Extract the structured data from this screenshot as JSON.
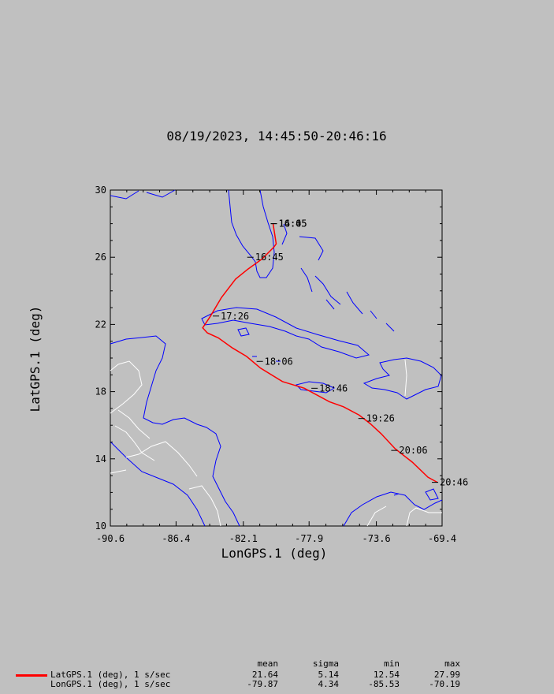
{
  "title": "08/19/2023, 14:45:50-20:46:16",
  "colors": {
    "background": "#c0c0c0",
    "plot_background": "#c0c0c0",
    "track": "#ff0000",
    "coastline": "#0000ff",
    "borders": "#ffffff",
    "axis": "#000000"
  },
  "chart_data": {
    "type": "line",
    "xlabel": "LonGPS.1 (deg)",
    "ylabel": "LatGPS.1 (deg)",
    "xlim": [
      -90.6,
      -69.4
    ],
    "ylim": [
      10,
      30
    ],
    "x_ticks": [
      "-90.6",
      "-86.4",
      "-82.1",
      "-77.9",
      "-73.6",
      "-69.4"
    ],
    "y_ticks": [
      "10",
      "14",
      "18",
      "22",
      "26",
      "30"
    ],
    "grid": false,
    "series": [
      {
        "name": "LatGPS.1 (deg), 1 s/sec",
        "color": "#ff0000",
        "points": [
          [
            -80.2,
            28.0
          ],
          [
            -80.0,
            26.8
          ],
          [
            -80.15,
            26.6
          ],
          [
            -80.9,
            25.9
          ],
          [
            -81.8,
            25.3
          ],
          [
            -82.6,
            24.7
          ],
          [
            -83.5,
            23.6
          ],
          [
            -84.2,
            22.5
          ],
          [
            -84.7,
            21.8
          ],
          [
            -84.4,
            21.5
          ],
          [
            -83.7,
            21.2
          ],
          [
            -82.8,
            20.6
          ],
          [
            -81.9,
            20.1
          ],
          [
            -81.0,
            19.4
          ],
          [
            -79.6,
            18.6
          ],
          [
            -78.2,
            18.2
          ],
          [
            -76.6,
            17.4
          ],
          [
            -75.7,
            17.1
          ],
          [
            -74.7,
            16.6
          ],
          [
            -74.0,
            16.1
          ],
          [
            -73.3,
            15.5
          ],
          [
            -72.4,
            14.6
          ],
          [
            -71.3,
            13.8
          ],
          [
            -70.3,
            12.9
          ],
          [
            -69.7,
            12.6
          ]
        ]
      }
    ],
    "time_labels": [
      {
        "label": "14:45",
        "lon": -80.1,
        "lat": 28.0
      },
      {
        "label": "16:05",
        "lon": -80.1,
        "lat": 28.0
      },
      {
        "label": "16:45",
        "lon": -81.6,
        "lat": 26.0
      },
      {
        "label": "17:26",
        "lon": -83.8,
        "lat": 22.5
      },
      {
        "label": "18:06",
        "lon": -81.0,
        "lat": 19.8
      },
      {
        "label": "18:46",
        "lon": -77.5,
        "lat": 18.2
      },
      {
        "label": "19:26",
        "lon": -74.5,
        "lat": 16.4
      },
      {
        "label": "20:06",
        "lon": -72.4,
        "lat": 14.5
      },
      {
        "label": "20:46",
        "lon": -69.8,
        "lat": 12.6
      }
    ]
  },
  "stats": {
    "headers": {
      "mean": "mean",
      "sigma": "sigma",
      "min": "min",
      "max": "max"
    },
    "rows": [
      {
        "label": "LatGPS.1 (deg), 1 s/sec",
        "color": "#ff0000",
        "mean": "21.64",
        "sigma": "5.14",
        "min": "12.54",
        "max": "27.99"
      },
      {
        "label": "LonGPS.1 (deg), 1 s/sec",
        "color": "",
        "mean": "-79.87",
        "sigma": "4.34",
        "min": "-85.53",
        "max": "-70.19"
      }
    ]
  }
}
